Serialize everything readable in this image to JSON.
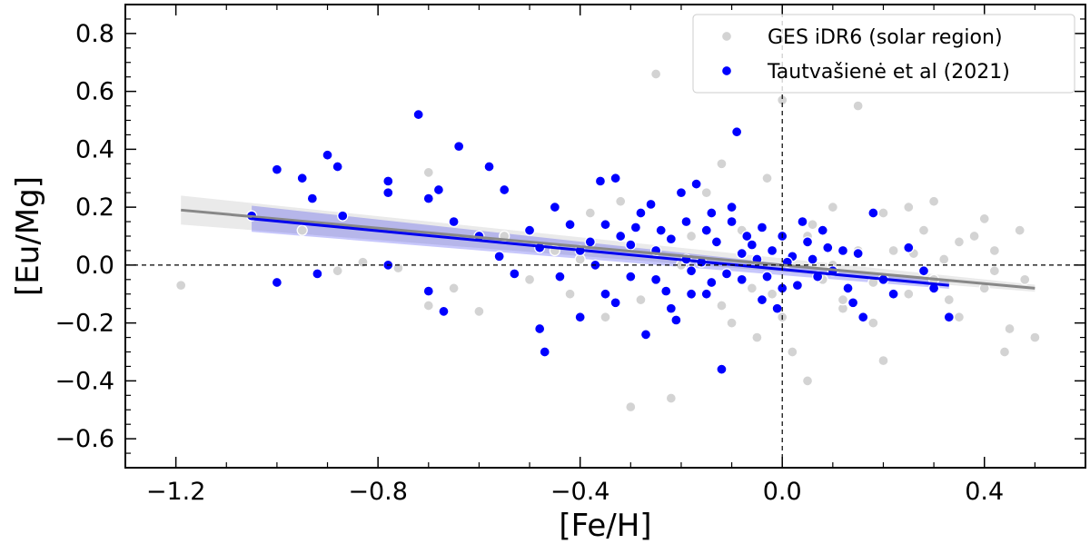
{
  "chart_data": {
    "type": "scatter",
    "title": "",
    "xlabel": "[Fe/H]",
    "ylabel": "[Eu/Mg]",
    "xlim": [
      -1.3,
      0.6
    ],
    "ylim": [
      -0.7,
      0.9
    ],
    "xticks": [
      -1.2,
      -0.8,
      -0.4,
      0.0,
      0.4
    ],
    "xtick_labels": [
      "−1.2",
      "−0.8",
      "−0.4",
      "0.0",
      "0.4"
    ],
    "yticks": [
      -0.6,
      -0.4,
      -0.2,
      0.0,
      0.2,
      0.4,
      0.6,
      0.8
    ],
    "ytick_labels": [
      "−0.6",
      "−0.4",
      "−0.2",
      "0.0",
      "0.2",
      "0.4",
      "0.6",
      "0.8"
    ],
    "reference_lines": {
      "x": 0.0,
      "y": 0.0
    },
    "legend_position": "top-right",
    "series": [
      {
        "name": "GES iDR6 (solar region)",
        "color": "#d3d3d3",
        "points": [
          [
            -1.19,
            -0.07
          ],
          [
            -0.7,
            0.32
          ],
          [
            -0.7,
            -0.14
          ],
          [
            -0.65,
            -0.08
          ],
          [
            -0.6,
            -0.16
          ],
          [
            -0.55,
            0.1
          ],
          [
            -0.5,
            -0.05
          ],
          [
            -0.45,
            0.05
          ],
          [
            -0.42,
            -0.1
          ],
          [
            -0.38,
            0.18
          ],
          [
            -0.35,
            -0.18
          ],
          [
            -0.32,
            0.22
          ],
          [
            -0.3,
            -0.49
          ],
          [
            -0.25,
            0.66
          ],
          [
            -0.22,
            -0.46
          ],
          [
            -0.2,
            0.0
          ],
          [
            -0.15,
            0.25
          ],
          [
            -0.12,
            0.35
          ],
          [
            -0.1,
            -0.2
          ],
          [
            -0.08,
            0.12
          ],
          [
            -0.05,
            -0.25
          ],
          [
            -0.03,
            0.3
          ],
          [
            0.0,
            0.57
          ],
          [
            0.02,
            -0.3
          ],
          [
            0.05,
            0.1
          ],
          [
            0.08,
            -0.05
          ],
          [
            0.1,
            0.2
          ],
          [
            0.12,
            -0.15
          ],
          [
            0.15,
            0.05
          ],
          [
            0.18,
            -0.2
          ],
          [
            0.2,
            0.18
          ],
          [
            0.22,
            0.05
          ],
          [
            0.25,
            -0.1
          ],
          [
            0.28,
            0.12
          ],
          [
            0.3,
            -0.05
          ],
          [
            0.32,
            0.02
          ],
          [
            0.35,
            -0.18
          ],
          [
            0.38,
            0.1
          ],
          [
            0.4,
            -0.08
          ],
          [
            0.42,
            0.05
          ],
          [
            0.45,
            -0.22
          ],
          [
            0.48,
            -0.05
          ],
          [
            0.5,
            -0.25
          ],
          [
            0.15,
            0.55
          ],
          [
            0.2,
            -0.33
          ],
          [
            0.25,
            0.2
          ],
          [
            0.05,
            -0.4
          ],
          [
            -0.02,
            -0.1
          ],
          [
            0.1,
            0.0
          ],
          [
            0.3,
            0.22
          ],
          [
            0.35,
            0.08
          ],
          [
            0.42,
            -0.02
          ],
          [
            0.47,
            0.12
          ],
          [
            0.44,
            -0.3
          ],
          [
            0.4,
            0.16
          ],
          [
            0.33,
            -0.12
          ],
          [
            -0.4,
            0.02
          ],
          [
            -0.28,
            -0.12
          ],
          [
            -0.18,
            0.1
          ],
          [
            -0.06,
            -0.08
          ],
          [
            0.06,
            0.14
          ],
          [
            0.18,
            -0.06
          ],
          [
            0.26,
            0.04
          ],
          [
            -0.83,
            0.01
          ],
          [
            -0.76,
            -0.01
          ],
          [
            -0.95,
            0.12
          ],
          [
            -0.88,
            -0.02
          ],
          [
            0.12,
            -0.12
          ],
          [
            0.0,
            -0.18
          ],
          [
            -0.12,
            -0.14
          ]
        ]
      },
      {
        "name": "Tautvašienė et al (2021)",
        "color": "#0000ff",
        "points": [
          [
            -1.05,
            0.17
          ],
          [
            -1.0,
            0.33
          ],
          [
            -1.0,
            -0.06
          ],
          [
            -0.95,
            0.3
          ],
          [
            -0.93,
            0.23
          ],
          [
            -0.92,
            -0.03
          ],
          [
            -0.9,
            0.38
          ],
          [
            -0.88,
            0.34
          ],
          [
            -0.87,
            0.17
          ],
          [
            -0.78,
            0.29
          ],
          [
            -0.78,
            0.25
          ],
          [
            -0.78,
            0.0
          ],
          [
            -0.72,
            0.52
          ],
          [
            -0.7,
            -0.09
          ],
          [
            -0.7,
            0.23
          ],
          [
            -0.68,
            0.26
          ],
          [
            -0.67,
            -0.16
          ],
          [
            -0.65,
            0.15
          ],
          [
            -0.64,
            0.41
          ],
          [
            -0.6,
            0.1
          ],
          [
            -0.58,
            0.34
          ],
          [
            -0.56,
            0.03
          ],
          [
            -0.55,
            0.26
          ],
          [
            -0.53,
            -0.03
          ],
          [
            -0.5,
            0.12
          ],
          [
            -0.48,
            0.06
          ],
          [
            -0.48,
            -0.22
          ],
          [
            -0.47,
            -0.3
          ],
          [
            -0.45,
            0.2
          ],
          [
            -0.42,
            0.14
          ],
          [
            -0.4,
            -0.18
          ],
          [
            -0.38,
            0.08
          ],
          [
            -0.36,
            0.29
          ],
          [
            -0.35,
            -0.1
          ],
          [
            -0.33,
            0.3
          ],
          [
            -0.32,
            0.1
          ],
          [
            -0.3,
            -0.04
          ],
          [
            -0.28,
            0.18
          ],
          [
            -0.27,
            -0.24
          ],
          [
            -0.25,
            0.05
          ],
          [
            -0.24,
            0.12
          ],
          [
            -0.22,
            -0.15
          ],
          [
            -0.2,
            0.25
          ],
          [
            -0.19,
            0.02
          ],
          [
            -0.18,
            -0.02
          ],
          [
            -0.17,
            0.28
          ],
          [
            -0.15,
            -0.1
          ],
          [
            -0.14,
            0.18
          ],
          [
            -0.13,
            0.08
          ],
          [
            -0.12,
            -0.36
          ],
          [
            -0.1,
            0.15
          ],
          [
            -0.09,
            0.46
          ],
          [
            -0.08,
            -0.05
          ],
          [
            -0.07,
            0.1
          ],
          [
            -0.05,
            0.02
          ],
          [
            -0.04,
            -0.12
          ],
          [
            -0.02,
            0.05
          ],
          [
            0.0,
            0.1
          ],
          [
            0.0,
            -0.08
          ],
          [
            0.02,
            0.03
          ],
          [
            0.05,
            0.08
          ],
          [
            0.07,
            -0.04
          ],
          [
            0.08,
            0.12
          ],
          [
            0.1,
            -0.02
          ],
          [
            0.12,
            0.05
          ],
          [
            0.13,
            -0.08
          ],
          [
            0.15,
            0.04
          ],
          [
            0.16,
            -0.18
          ],
          [
            0.18,
            0.18
          ],
          [
            0.2,
            -0.05
          ],
          [
            0.22,
            -0.1
          ],
          [
            0.25,
            0.06
          ],
          [
            0.28,
            -0.02
          ],
          [
            0.3,
            -0.08
          ],
          [
            0.33,
            -0.18
          ],
          [
            -0.35,
            0.14
          ],
          [
            -0.3,
            0.07
          ],
          [
            -0.25,
            -0.05
          ],
          [
            -0.22,
            0.09
          ],
          [
            -0.18,
            -0.1
          ],
          [
            -0.15,
            0.12
          ],
          [
            -0.11,
            -0.03
          ],
          [
            -0.06,
            0.07
          ],
          [
            -0.03,
            -0.04
          ],
          [
            0.03,
            -0.07
          ],
          [
            0.06,
            0.02
          ],
          [
            0.09,
            0.06
          ],
          [
            -0.4,
            0.05
          ],
          [
            -0.44,
            -0.04
          ],
          [
            -0.33,
            -0.13
          ],
          [
            -0.26,
            0.21
          ],
          [
            -0.21,
            -0.19
          ],
          [
            -0.16,
            0.01
          ],
          [
            -0.1,
            0.2
          ],
          [
            -0.01,
            -0.15
          ],
          [
            0.04,
            0.15
          ],
          [
            0.14,
            -0.13
          ],
          [
            -0.37,
            0.0
          ],
          [
            -0.29,
            0.13
          ],
          [
            -0.23,
            -0.09
          ],
          [
            -0.19,
            0.15
          ],
          [
            -0.14,
            -0.06
          ],
          [
            -0.08,
            0.04
          ],
          [
            -0.04,
            0.13
          ],
          [
            0.01,
            0.01
          ]
        ]
      }
    ],
    "fits": [
      {
        "name": "GES iDR6 (solar region) fit",
        "color": "#888888",
        "x": [
          -1.19,
          0.5
        ],
        "y": [
          0.19,
          -0.08
        ],
        "band_halfwidth": [
          0.05,
          0.012
        ]
      },
      {
        "name": "Tautvašienė et al (2021) fit",
        "color": "#0000ee",
        "x": [
          -1.05,
          0.33
        ],
        "y": [
          0.16,
          -0.07
        ],
        "band_halfwidth": [
          0.045,
          0.012
        ]
      }
    ]
  }
}
